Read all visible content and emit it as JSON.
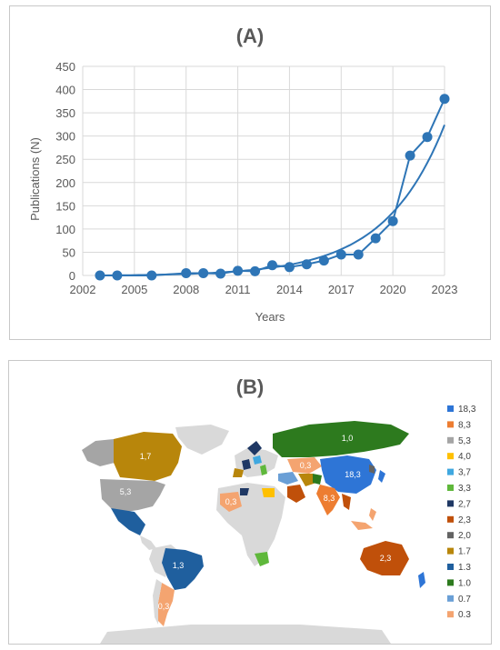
{
  "chart_data": [
    {
      "type": "line",
      "title": "(A)",
      "xlabel": "Years",
      "ylabel": "Publications (N)",
      "xlim": [
        2002,
        2023
      ],
      "ylim": [
        0,
        450
      ],
      "x_ticks": [
        "2002",
        "2005",
        "2008",
        "2011",
        "2014",
        "2017",
        "2020",
        "2023"
      ],
      "y_ticks": [
        "0",
        "50",
        "100",
        "150",
        "200",
        "250",
        "300",
        "350",
        "400",
        "450"
      ],
      "grid": true,
      "series": [
        {
          "x": [
            2003,
            2004,
            2006,
            2008,
            2009,
            2010,
            2011,
            2012,
            2013,
            2014,
            2015,
            2016,
            2017,
            2018,
            2019,
            2020,
            2021,
            2022,
            2023
          ],
          "y": [
            0,
            0,
            0,
            5,
            5,
            4,
            10,
            9,
            22,
            18,
            24,
            32,
            45,
            45,
            80,
            117,
            258,
            298,
            380
          ]
        }
      ],
      "trendline": {
        "type": "exponential",
        "x_start": 2003,
        "x_end": 2023,
        "y_end": 325
      },
      "color": "#2e75b6"
    },
    {
      "type": "map",
      "title": "(B)",
      "legend_placement": "right",
      "legend": [
        {
          "label": "18,3",
          "color": "#2e75d6"
        },
        {
          "label": "8,3",
          "color": "#ed7d31"
        },
        {
          "label": "5,3",
          "color": "#a5a5a5"
        },
        {
          "label": "4,0",
          "color": "#ffc000"
        },
        {
          "label": "3,7",
          "color": "#40a8e0"
        },
        {
          "label": "3,3",
          "color": "#5fb83b"
        },
        {
          "label": "2,7",
          "color": "#1f3864"
        },
        {
          "label": "2,3",
          "color": "#c0500a"
        },
        {
          "label": "2,0",
          "color": "#636363"
        },
        {
          "label": "1.7",
          "color": "#b8860b"
        },
        {
          "label": "1.3",
          "color": "#1f5f9e"
        },
        {
          "label": "1.0",
          "color": "#2d7a1e"
        },
        {
          "label": "0.7",
          "color": "#6a9fd6"
        },
        {
          "label": "0.3",
          "color": "#f4a470"
        }
      ],
      "regions": [
        {
          "name": "Canada",
          "value": "1,7",
          "color": "#b8860b"
        },
        {
          "name": "United States",
          "value": "5,3",
          "color": "#a5a5a5"
        },
        {
          "name": "Brazil",
          "value": "1,3",
          "color": "#1f5f9e"
        },
        {
          "name": "Argentina",
          "value": "0,3",
          "color": "#f4a470"
        },
        {
          "name": "Russia",
          "value": "1,0",
          "color": "#2d7a1e"
        },
        {
          "name": "China",
          "value": "18,3",
          "color": "#2e75d6"
        },
        {
          "name": "India",
          "value": "8,3",
          "color": "#ed7d31"
        },
        {
          "name": "Australia",
          "value": "2,3",
          "color": "#c0500a"
        },
        {
          "name": "Kazakhstan",
          "value": "0,3",
          "color": "#f4a470"
        },
        {
          "name": "Algeria",
          "value": "0,3",
          "color": "#f4a470"
        }
      ],
      "land_color": "#d9d9d9"
    }
  ]
}
